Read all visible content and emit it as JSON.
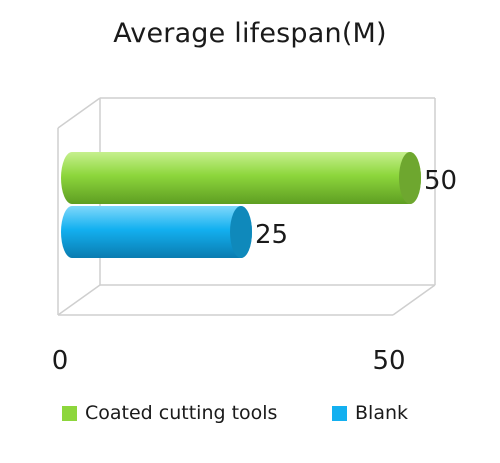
{
  "chart_data": {
    "type": "bar",
    "orientation": "horizontal",
    "three_d": true,
    "title": "Average lifespan(M)",
    "xlabel": "",
    "ylabel": "",
    "xlim": [
      0,
      50
    ],
    "x_tick_labels": [
      "0",
      "50"
    ],
    "grid": false,
    "legend_position": "bottom",
    "series": [
      {
        "name": "Coated cutting tools",
        "value": 50,
        "data_label": "50",
        "color": "#8dd63c"
      },
      {
        "name": "Blank",
        "value": 25,
        "data_label": "25",
        "color": "#13b0f0"
      }
    ]
  }
}
